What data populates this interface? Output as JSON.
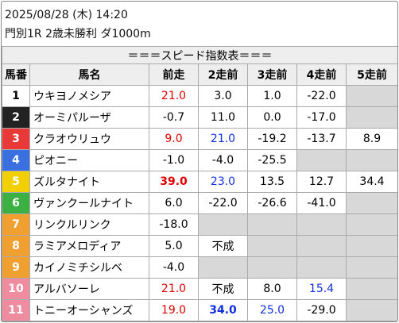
{
  "header": {
    "datetime": "2025/08/28 (木) 14:20",
    "race": "門別1R 2歳未勝利 ダ1000m"
  },
  "table": {
    "title": "＝＝＝スピード指数表＝＝＝",
    "columns": [
      "馬番",
      "馬名",
      "前走",
      "2走前",
      "3走前",
      "4走前",
      "5走前"
    ],
    "rows": [
      {
        "num": "1",
        "frame_bg": "#ffffff",
        "frame_fg": "#000000",
        "name": "ウキヨノメシア",
        "cells": [
          {
            "text": "21.0",
            "style": "red"
          },
          {
            "text": "3.0"
          },
          {
            "text": "1.0"
          },
          {
            "text": "-22.0"
          },
          null
        ]
      },
      {
        "num": "2",
        "frame_bg": "#222222",
        "frame_fg": "#ffffff",
        "name": "オーミパルーザ",
        "cells": [
          {
            "text": "-0.7"
          },
          {
            "text": "11.0"
          },
          {
            "text": "0.0"
          },
          {
            "text": "-17.0"
          },
          null
        ]
      },
      {
        "num": "3",
        "frame_bg": "#e83838",
        "frame_fg": "#ffffff",
        "name": "クラオウリュウ",
        "cells": [
          {
            "text": "9.0",
            "style": "red"
          },
          {
            "text": "21.0",
            "style": "blue"
          },
          {
            "text": "-19.2"
          },
          {
            "text": "-13.7"
          },
          {
            "text": "8.9"
          }
        ]
      },
      {
        "num": "4",
        "frame_bg": "#3a6fe0",
        "frame_fg": "#ffffff",
        "name": "ピオニー",
        "cells": [
          {
            "text": "-1.0"
          },
          {
            "text": "-4.0"
          },
          {
            "text": "-25.5"
          },
          null,
          null
        ]
      },
      {
        "num": "5",
        "frame_bg": "#f2d000",
        "frame_fg": "#ffffff",
        "name": "ズルタナイト",
        "cells": [
          {
            "text": "39.0",
            "style": "red bold"
          },
          {
            "text": "23.0",
            "style": "blue"
          },
          {
            "text": "13.5"
          },
          {
            "text": "12.7"
          },
          {
            "text": "34.4"
          }
        ]
      },
      {
        "num": "6",
        "frame_bg": "#3cb043",
        "frame_fg": "#ffffff",
        "name": "ヴァンクールナイト",
        "cells": [
          {
            "text": "6.0"
          },
          {
            "text": "-22.0"
          },
          {
            "text": "-26.6"
          },
          {
            "text": "-41.0"
          },
          null
        ]
      },
      {
        "num": "7",
        "frame_bg": "#f0a030",
        "frame_fg": "#ffffff",
        "name": "リンクルリンク",
        "cells": [
          {
            "text": "-18.0"
          },
          null,
          null,
          null,
          null
        ]
      },
      {
        "num": "8",
        "frame_bg": "#f0a030",
        "frame_fg": "#ffffff",
        "name": "ラミアメロディア",
        "cells": [
          {
            "text": "5.0"
          },
          {
            "text": "不成"
          },
          null,
          null,
          null
        ]
      },
      {
        "num": "9",
        "frame_bg": "#f0a030",
        "frame_fg": "#ffffff",
        "name": "カイノミチシルベ",
        "cells": [
          {
            "text": "-4.0"
          },
          null,
          null,
          null,
          null
        ]
      },
      {
        "num": "10",
        "frame_bg": "#f08ca0",
        "frame_fg": "#ffffff",
        "name": "アルバソーレ",
        "cells": [
          {
            "text": "21.0",
            "style": "red"
          },
          {
            "text": "不成"
          },
          {
            "text": "8.0"
          },
          {
            "text": "15.4",
            "style": "blue"
          },
          null
        ]
      },
      {
        "num": "11",
        "frame_bg": "#f08ca0",
        "frame_fg": "#ffffff",
        "name": "トニーオーシャンズ",
        "cells": [
          {
            "text": "19.0",
            "style": "red"
          },
          {
            "text": "34.0",
            "style": "blue bold"
          },
          {
            "text": "25.0",
            "style": "blue"
          },
          {
            "text": "-29.0"
          },
          null
        ]
      }
    ]
  }
}
